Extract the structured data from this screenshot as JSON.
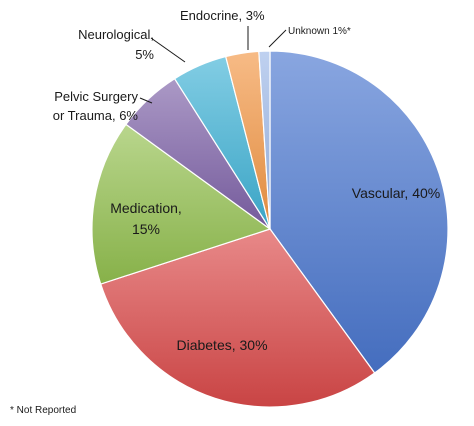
{
  "chart_data": {
    "type": "pie",
    "title": "",
    "slices": [
      {
        "label": "Vascular",
        "value": 40,
        "display": "Vascular, 40%",
        "color": "#4a76cf"
      },
      {
        "label": "Diabetes",
        "value": 30,
        "display": "Diabetes, 30%",
        "color": "#db4a4a"
      },
      {
        "label": "Medication",
        "value": 15,
        "display_lines": [
          "Medication,",
          "15%"
        ],
        "color": "#93c04f"
      },
      {
        "label": "Pelvic Surgery or Trauma",
        "value": 6,
        "display_lines": [
          "Pelvic Surgery",
          "or Trauma, 6%"
        ],
        "color": "#7e62a8"
      },
      {
        "label": "Neurological",
        "value": 5,
        "display_lines": [
          "Neurological,",
          "5%"
        ],
        "color": "#3fb2d6"
      },
      {
        "label": "Endocrine",
        "value": 3,
        "display": "Endocrine, 3%",
        "color": "#f39745"
      },
      {
        "label": "Unknown",
        "value": 1,
        "display": "Unknown 1%*",
        "color": "#9cb8e8"
      }
    ],
    "footnote": "* Not Reported"
  }
}
